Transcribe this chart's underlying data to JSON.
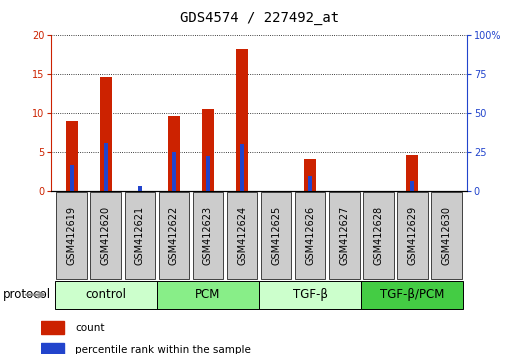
{
  "title": "GDS4574 / 227492_at",
  "samples": [
    "GSM412619",
    "GSM412620",
    "GSM412621",
    "GSM412622",
    "GSM412623",
    "GSM412624",
    "GSM412625",
    "GSM412626",
    "GSM412627",
    "GSM412628",
    "GSM412629",
    "GSM412630"
  ],
  "count_values": [
    9.0,
    14.7,
    0.0,
    9.7,
    10.5,
    18.3,
    0.0,
    4.1,
    0.0,
    0.0,
    4.6,
    0.0
  ],
  "percentile_values": [
    3.3,
    6.2,
    0.7,
    5.0,
    4.5,
    6.0,
    0.0,
    2.0,
    0.0,
    0.0,
    1.3,
    0.0
  ],
  "groups": [
    {
      "label": "control",
      "indices": [
        0,
        1,
        2
      ],
      "color": "#ccffcc"
    },
    {
      "label": "PCM",
      "indices": [
        3,
        4,
        5
      ],
      "color": "#88ee88"
    },
    {
      "label": "TGF-β",
      "indices": [
        6,
        7,
        8
      ],
      "color": "#ccffcc"
    },
    {
      "label": "TGF-β/PCM",
      "indices": [
        9,
        10,
        11
      ],
      "color": "#44cc44"
    }
  ],
  "ylim_left": [
    0,
    20
  ],
  "ylim_right": [
    0,
    100
  ],
  "yticks_left": [
    0,
    5,
    10,
    15,
    20
  ],
  "yticks_right": [
    0,
    25,
    50,
    75,
    100
  ],
  "ytick_labels_right": [
    "0",
    "25",
    "50",
    "75",
    "100%"
  ],
  "bar_color_red": "#cc2200",
  "bar_color_blue": "#2244cc",
  "bar_width": 0.35,
  "blue_bar_width": 0.12,
  "bg_color": "#ffffff",
  "sample_box_color": "#cccccc",
  "title_fontsize": 10,
  "tick_label_fontsize": 7,
  "group_label_fontsize": 8.5,
  "legend_fontsize": 7.5,
  "protocol_fontsize": 8.5
}
